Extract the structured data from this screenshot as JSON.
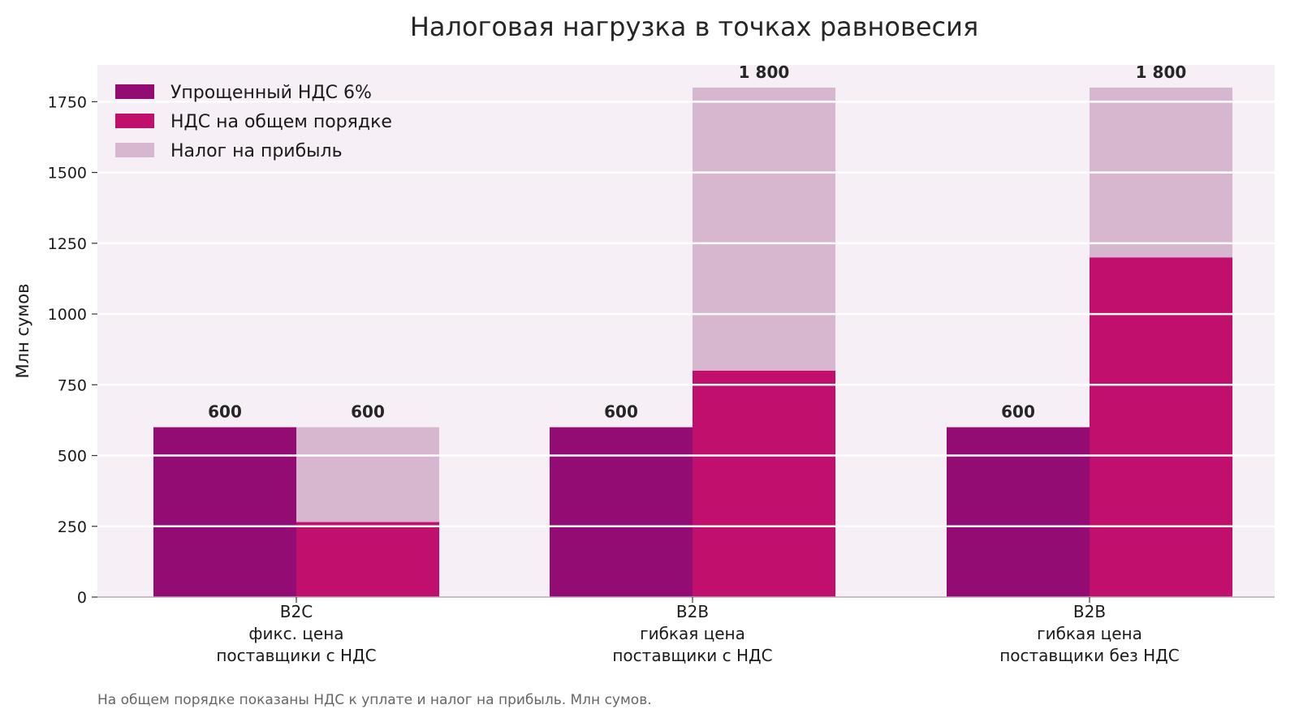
{
  "chart_data": {
    "type": "bar",
    "stacked": true,
    "title": "Налоговая нагрузка в точках равновесия",
    "ylabel": "Млн сумов",
    "xlabel": "",
    "ylim": [
      0,
      1880
    ],
    "yticks": [
      0,
      250,
      500,
      750,
      1000,
      1250,
      1500,
      1750
    ],
    "grid": true,
    "legend_position": "top-left",
    "note": "На общем порядке показаны НДС к уплате и налог на прибыль. Млн сумов.",
    "categories": [
      [
        "B2C",
        "фикс. цена",
        "поставщики с НДС"
      ],
      [
        "B2B",
        "гибкая цена",
        "поставщики с НДС"
      ],
      [
        "B2B",
        "гибкая цена",
        "поставщики без НДС"
      ]
    ],
    "legend": [
      {
        "label": "Упрощенный НДС 6%",
        "color": "#930c73"
      },
      {
        "label": "НДС на общем порядке",
        "color": "#c10f6d"
      },
      {
        "label": "Налог на прибыль",
        "color": "#d7b6cf"
      }
    ],
    "bars": [
      {
        "group": 0,
        "slot": 0,
        "segments": [
          {
            "series": 0,
            "value": 600
          }
        ],
        "total_label": "600"
      },
      {
        "group": 0,
        "slot": 1,
        "segments": [
          {
            "series": 1,
            "value": 265
          },
          {
            "series": 2,
            "value": 335
          }
        ],
        "total_label": "600"
      },
      {
        "group": 1,
        "slot": 0,
        "segments": [
          {
            "series": 0,
            "value": 600
          }
        ],
        "total_label": "600"
      },
      {
        "group": 1,
        "slot": 1,
        "segments": [
          {
            "series": 1,
            "value": 800
          },
          {
            "series": 2,
            "value": 1000
          }
        ],
        "total_label": "1 800"
      },
      {
        "group": 2,
        "slot": 0,
        "segments": [
          {
            "series": 0,
            "value": 600
          }
        ],
        "total_label": "600"
      },
      {
        "group": 2,
        "slot": 1,
        "segments": [
          {
            "series": 1,
            "value": 1200
          },
          {
            "series": 2,
            "value": 600
          }
        ],
        "total_label": "1 800"
      }
    ],
    "colors": {
      "plot_background": "#f6eff5",
      "gridline": "#ffffff",
      "axis": "#b9a9b6"
    }
  }
}
